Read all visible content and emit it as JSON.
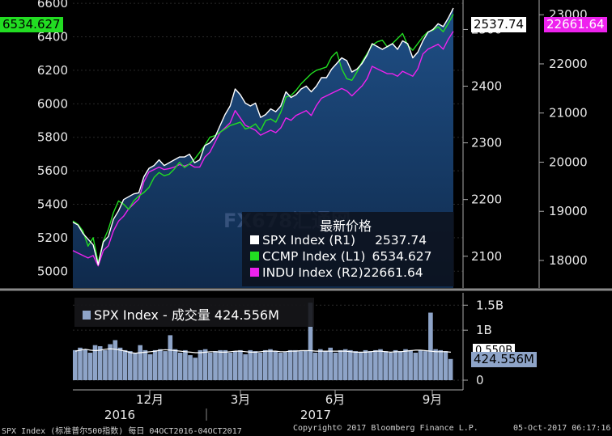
{
  "header": {
    "left_badge": "6534.627",
    "mid_badge": "2537.74",
    "right_badge": "22661.64"
  },
  "legend": {
    "title": "最新价格",
    "items": [
      {
        "label": "SPX Index (R1)",
        "value": "2537.74",
        "color": "#ffffff"
      },
      {
        "label": "CCMP Index (L1)",
        "value": "6534.627",
        "color": "#22dd22"
      },
      {
        "label": "INDU Index (R2)",
        "value": "22661.64",
        "color": "#ee22ee"
      }
    ]
  },
  "volume_legend": {
    "label": "SPX Index - 成交量 424.556M",
    "badge": "424.556M",
    "partial_label": "0.550B"
  },
  "watermark": "FX678汇通网",
  "footer": {
    "left": "SPX Index (标准普尔500指数) 每日 04OCT2016-04OCT2017",
    "center": "Copyright© 2017 Bloomberg Finance L.P.",
    "right": "05-Oct-2017 06:17:16"
  },
  "chart_data": [
    {
      "type": "line",
      "axes": {
        "left": {
          "series": "CCMP Index",
          "range": [
            4900,
            6620
          ],
          "ticks": [
            "5000",
            "5200",
            "5400",
            "5600",
            "5800",
            "6000",
            "6200",
            "6400",
            "6600"
          ]
        },
        "right1": {
          "series": "SPX Index",
          "range": [
            2044,
            2552
          ],
          "ticks": [
            "2100",
            "2200",
            "2300",
            "2400",
            "2500"
          ]
        },
        "right2": {
          "series": "INDU Index",
          "range": [
            17440,
            23300
          ],
          "ticks": [
            "18000",
            "19000",
            "20000",
            "21000",
            "22000",
            "23000"
          ]
        }
      },
      "x_labels": [
        "12月",
        "3月",
        "6月",
        "9月"
      ],
      "year_labels": [
        "2016",
        "2017"
      ],
      "series": [
        {
          "name": "SPX Index",
          "color": "#ffffff",
          "values": [
            2160,
            2155,
            2140,
            2130,
            2120,
            2085,
            2125,
            2135,
            2165,
            2180,
            2200,
            2205,
            2210,
            2212,
            2240,
            2255,
            2260,
            2270,
            2260,
            2265,
            2270,
            2275,
            2275,
            2280,
            2265,
            2270,
            2295,
            2300,
            2310,
            2330,
            2350,
            2365,
            2395,
            2385,
            2370,
            2365,
            2370,
            2345,
            2350,
            2360,
            2355,
            2365,
            2390,
            2380,
            2385,
            2395,
            2400,
            2390,
            2400,
            2415,
            2415,
            2430,
            2440,
            2450,
            2445,
            2425,
            2430,
            2440,
            2455,
            2475,
            2470,
            2465,
            2470,
            2475,
            2465,
            2480,
            2475,
            2450,
            2460,
            2480,
            2495,
            2500,
            2510,
            2505,
            2520,
            2537.74
          ]
        },
        {
          "name": "CCMP Index",
          "color": "#22dd22",
          "values": [
            5300,
            5280,
            5240,
            5150,
            5200,
            5050,
            5180,
            5250,
            5350,
            5420,
            5400,
            5370,
            5420,
            5450,
            5470,
            5500,
            5560,
            5590,
            5570,
            5580,
            5610,
            5650,
            5620,
            5640,
            5670,
            5710,
            5750,
            5800,
            5810,
            5830,
            5850,
            5870,
            5880,
            5890,
            5850,
            5860,
            5880,
            5840,
            5900,
            5910,
            5890,
            5950,
            6040,
            6050,
            6080,
            6120,
            6150,
            6180,
            6200,
            6210,
            6220,
            6280,
            6310,
            6210,
            6150,
            6140,
            6190,
            6250,
            6300,
            6350,
            6370,
            6380,
            6340,
            6360,
            6390,
            6420,
            6350,
            6320,
            6360,
            6400,
            6430,
            6440,
            6460,
            6430,
            6480,
            6534.627
          ]
        },
        {
          "name": "INDU Index",
          "color": "#ee22ee",
          "values": [
            18200,
            18150,
            18100,
            18050,
            18100,
            17890,
            18200,
            18300,
            18600,
            18800,
            18900,
            19050,
            19150,
            19250,
            19600,
            19800,
            19850,
            19900,
            19850,
            19870,
            19900,
            19950,
            19920,
            19960,
            19900,
            19900,
            20100,
            20200,
            20400,
            20600,
            20700,
            20800,
            21050,
            20900,
            20750,
            20700,
            20650,
            20550,
            20600,
            20650,
            20600,
            20700,
            20900,
            20850,
            20950,
            21000,
            21050,
            20950,
            21150,
            21300,
            21350,
            21400,
            21450,
            21500,
            21450,
            21350,
            21450,
            21550,
            21700,
            21950,
            21900,
            21850,
            21800,
            21800,
            21750,
            21850,
            21800,
            21750,
            21900,
            22200,
            22300,
            22350,
            22400,
            22300,
            22500,
            22661.64
          ]
        }
      ]
    },
    {
      "type": "bar",
      "series_name": "SPX Index - 成交量",
      "y_range_billion": [
        0,
        1.65
      ],
      "y_ticks": [
        "0",
        "1B",
        "1.5B"
      ],
      "avg_line": [
        0.58,
        0.6,
        0.62,
        0.6,
        0.59,
        0.6,
        0.62,
        0.63,
        0.62,
        0.6,
        0.58,
        0.55,
        0.54,
        0.55,
        0.56,
        0.57,
        0.58,
        0.6,
        0.61,
        0.6,
        0.59,
        0.58,
        0.57,
        0.56,
        0.55,
        0.55,
        0.56,
        0.57,
        0.57,
        0.56,
        0.56,
        0.57,
        0.58,
        0.58,
        0.57,
        0.56,
        0.56,
        0.57,
        0.58,
        0.58,
        0.58,
        0.57,
        0.57,
        0.58,
        0.58,
        0.59,
        0.59,
        0.59,
        0.58,
        0.58,
        0.58,
        0.58,
        0.58,
        0.58,
        0.58,
        0.57,
        0.56,
        0.56,
        0.56,
        0.57,
        0.58,
        0.58,
        0.57,
        0.56,
        0.57,
        0.57,
        0.58,
        0.59,
        0.6,
        0.6,
        0.59,
        0.58,
        0.57,
        0.57,
        0.57,
        0.56
      ],
      "values": [
        0.6,
        0.65,
        0.62,
        0.55,
        0.7,
        0.68,
        0.6,
        0.72,
        0.8,
        0.65,
        0.6,
        0.58,
        0.55,
        0.7,
        0.6,
        0.52,
        0.6,
        0.62,
        0.58,
        0.9,
        0.62,
        0.55,
        0.6,
        0.5,
        0.45,
        0.6,
        0.62,
        0.55,
        0.58,
        0.6,
        0.6,
        0.55,
        0.58,
        0.6,
        0.52,
        0.6,
        0.58,
        0.55,
        0.6,
        0.62,
        0.58,
        0.55,
        0.56,
        0.6,
        0.6,
        0.58,
        0.6,
        1.55,
        0.55,
        0.62,
        0.58,
        0.65,
        0.55,
        0.6,
        0.62,
        0.6,
        0.58,
        0.55,
        0.6,
        0.58,
        0.6,
        0.62,
        0.58,
        0.55,
        0.6,
        0.58,
        0.62,
        0.6,
        0.55,
        0.6,
        0.58,
        1.35,
        0.62,
        0.6,
        0.58,
        0.424556
      ]
    }
  ]
}
